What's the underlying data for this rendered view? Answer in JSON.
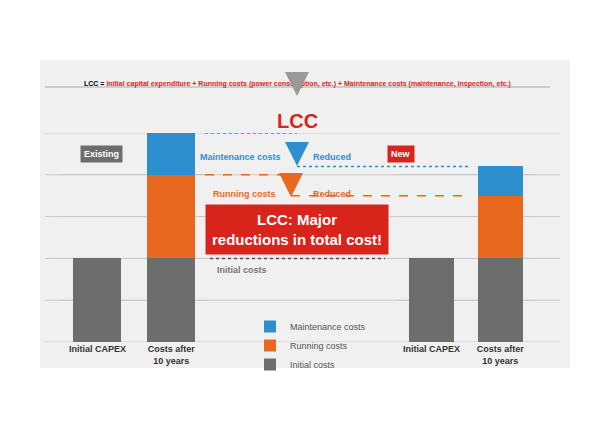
{
  "formula": {
    "lhs": "LCC =",
    "rhs": "Initial capital expenditure + Running costs (power consumption, etc.) + Maintenance costs (maintenance, inspection, etc.)"
  },
  "heading": "LCC",
  "callouts": {
    "maintenance": {
      "label": "Maintenance costs",
      "note": "Reduced"
    },
    "running": {
      "label": "Running costs",
      "note": "Reduced"
    },
    "banner": [
      "LCC: Major",
      "reductions in total cost!"
    ],
    "initial": "Initial costs"
  },
  "chart_data": [
    {
      "type": "bar",
      "title": "Existing",
      "stacked": true,
      "grid": true,
      "tick_labels": "x",
      "legend": "bottom",
      "ylim": [
        0,
        5
      ],
      "yticks": [
        0,
        1,
        2,
        3,
        4,
        5
      ],
      "categories": [
        "Initial CAPEX",
        "Costs after 10 years"
      ],
      "series": [
        {
          "name": "Initial costs",
          "color": "#6d6d6d",
          "values": [
            2,
            2
          ]
        },
        {
          "name": "Running costs",
          "color": "#e8681f",
          "values": [
            null,
            2
          ]
        },
        {
          "name": "Maintenance costs",
          "color": "#2e8fce",
          "values": [
            null,
            1
          ]
        }
      ]
    },
    {
      "type": "bar",
      "title": "New",
      "stacked": true,
      "grid": true,
      "tick_labels": "x",
      "ylim": [
        0,
        5
      ],
      "yticks": [
        0,
        1,
        2,
        3,
        4,
        5
      ],
      "categories": [
        "Initial CAPEX",
        "Costs after 10 years"
      ],
      "series": [
        {
          "name": "Initial costs",
          "color": "#6d6d6d",
          "values": [
            2,
            2
          ]
        },
        {
          "name": "Running costs",
          "color": "#e8681f",
          "values": [
            null,
            1.5
          ]
        },
        {
          "name": "Maintenance costs",
          "color": "#2e8fce",
          "values": [
            null,
            0.7
          ]
        }
      ]
    }
  ]
}
